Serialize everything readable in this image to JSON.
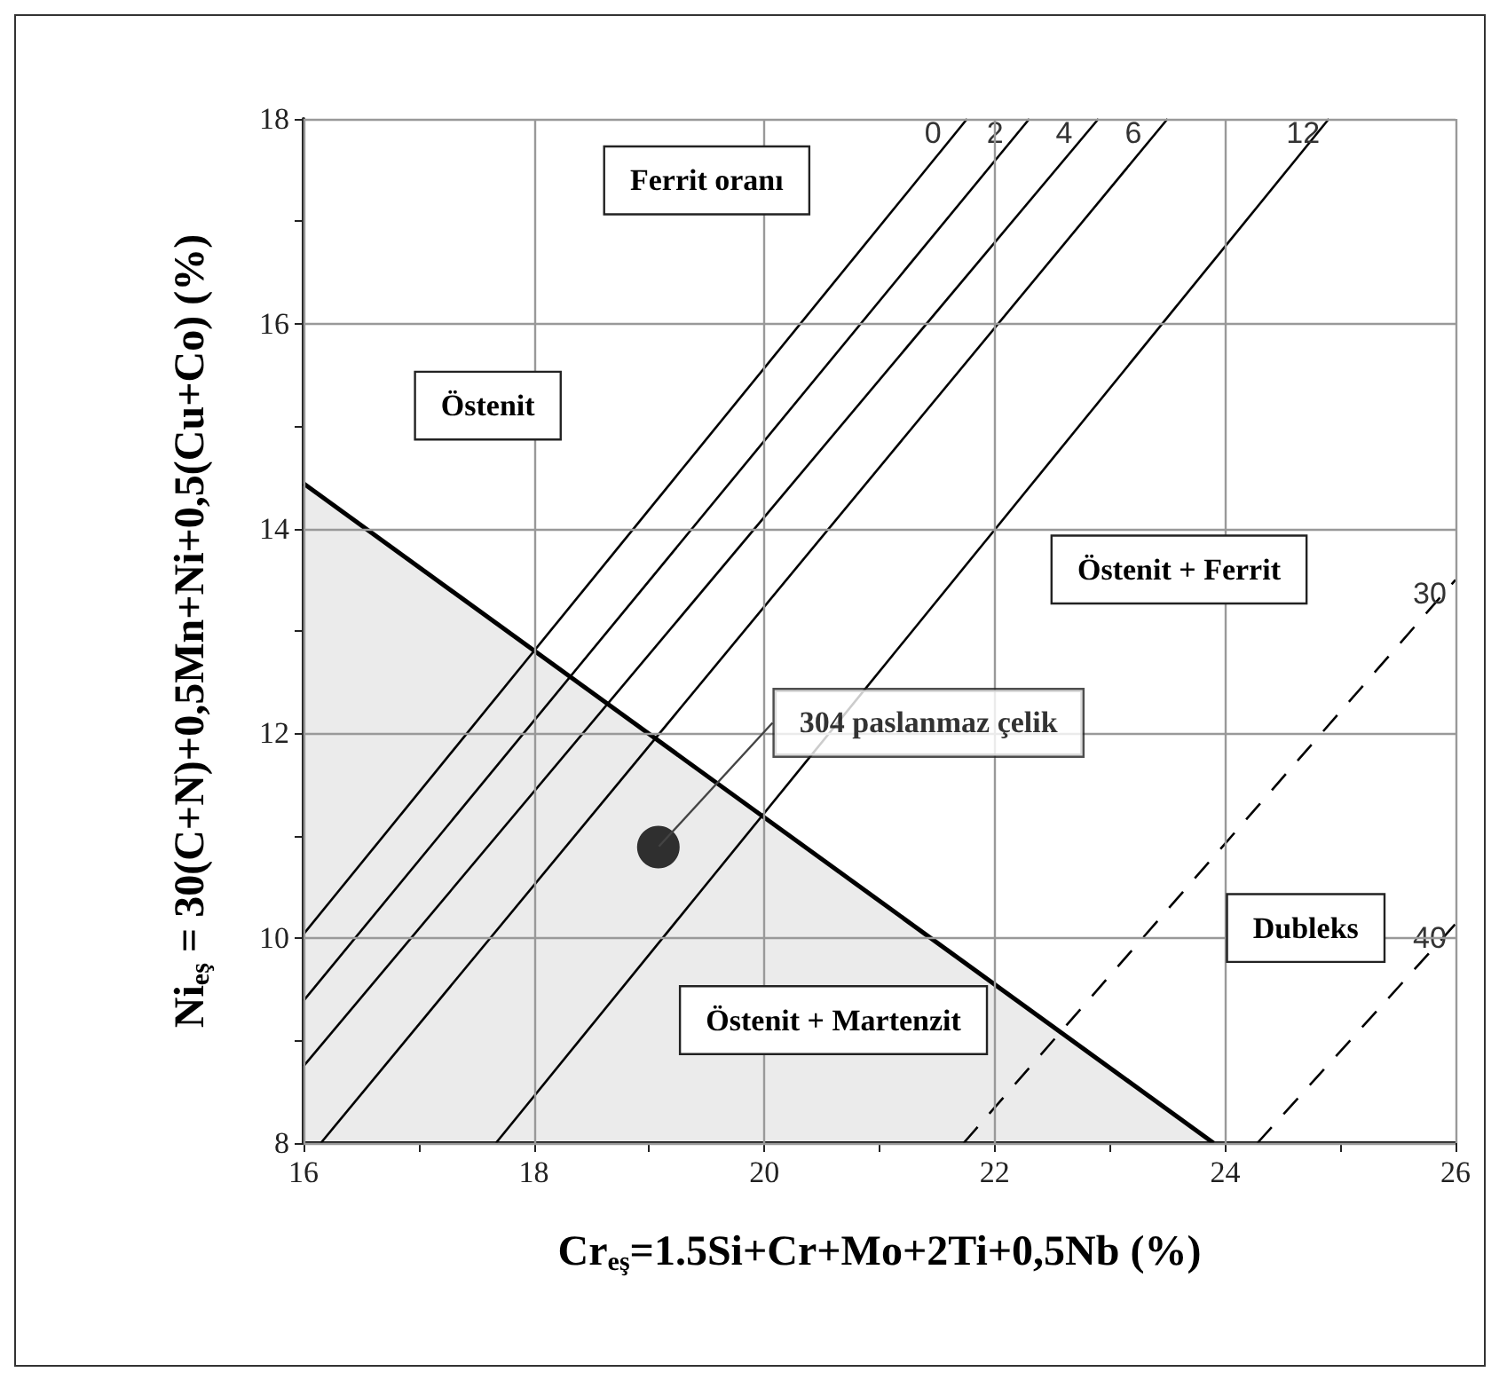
{
  "chart_data": {
    "type": "line",
    "xlabel": "Cr$_{eş}$=1.5Si+Cr+Mo+2Ti+0,5Nb (%)",
    "ylabel": "Ni$_{eş}$ = 30(C+N)+0,5Mn+Ni+0,5(Cu+Co) (%)",
    "xlim": [
      16,
      26
    ],
    "ylim": [
      8,
      18
    ],
    "xticks": [
      16,
      {
        "value": 17,
        "label": null
      },
      18,
      {
        "value": 19,
        "label": null
      },
      20,
      {
        "value": 21,
        "label": null
      },
      22,
      {
        "value": 23,
        "label": null
      },
      24,
      {
        "value": 25,
        "label": null
      },
      26
    ],
    "yticks": [
      8,
      {
        "value": 9,
        "label": null
      },
      10,
      {
        "value": 11,
        "label": null
      },
      12,
      {
        "value": 13,
        "label": null
      },
      14,
      {
        "value": 15,
        "label": null
      },
      16,
      {
        "value": 17,
        "label": null
      },
      18
    ],
    "grid": true,
    "marker": "none",
    "series": [
      {
        "type": "area",
        "color": "#000000",
        "x": [
          16,
          23.9
        ],
        "values": [
          14.44,
          8
        ]
      },
      {
        "name": "0",
        "color": "#000000",
        "x": [
          16,
          21.76
        ],
        "values": [
          10.04,
          18
        ]
      },
      {
        "name": "2",
        "color": "#000000",
        "x": [
          16,
          22.3
        ],
        "values": [
          9.39,
          18
        ]
      },
      {
        "name": "4",
        "color": "#000000",
        "x": [
          16,
          22.9
        ],
        "values": [
          8.75,
          18
        ]
      },
      {
        "name": "6",
        "color": "#000000",
        "x": [
          16.15,
          23.5
        ],
        "values": [
          8,
          18
        ]
      },
      {
        "name": "12",
        "color": "#000000",
        "x": [
          17.67,
          24.9
        ],
        "values": [
          8,
          18
        ]
      },
      {
        "name": "30",
        "color": "#000000",
        "line_style": "dashed",
        "x": [
          21.73,
          26
        ],
        "values": [
          8,
          13.5
        ]
      },
      {
        "name": "40",
        "color": "#000000",
        "line_style": "dashed",
        "x": [
          24.28,
          26
        ],
        "values": [
          8,
          10.14
        ]
      },
      {
        "type": "scatter",
        "marker": "circle",
        "color": "#000000",
        "x": [
          19.08
        ],
        "values": [
          10.89
        ]
      }
    ],
    "annotations": [
      "Ferrit oranı",
      "Östenit",
      "Östenit + Ferrit",
      "Östenit + Martenzit",
      "Dubleks",
      {
        "text": "304 paslanmaz çelik",
        "x": 19.08,
        "y": 10.89
      }
    ]
  }
}
